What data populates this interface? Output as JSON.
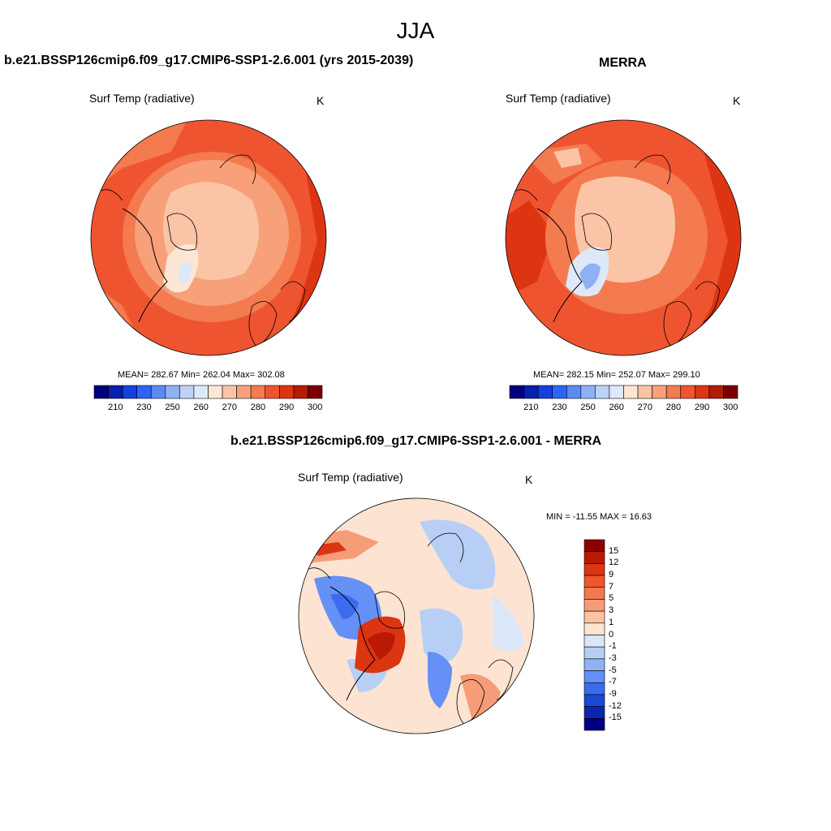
{
  "title": "JJA",
  "panels": [
    {
      "id": "model",
      "title": "b.e21.BSSP126cmip6.f09_g17.CMIP6-SSP1-2.6.001 (yrs 2015-2039)",
      "variable": "Surf Temp (radiative)",
      "units": "K",
      "stats": "MEAN= 282.67  Min= 262.04  Max= 302.08"
    },
    {
      "id": "obs",
      "title": "MERRA",
      "variable": "Surf Temp (radiative)",
      "units": "K",
      "stats": "MEAN= 282.15  Min= 252.07  Max= 299.10"
    },
    {
      "id": "diff",
      "title": "b.e21.BSSP126cmip6.f09_g17.CMIP6-SSP1-2.6.001 - MERRA",
      "variable": "Surf Temp (radiative)",
      "units": "K",
      "stats": "MIN = -11.55 MAX =  16.63"
    }
  ],
  "abs_colorbar": {
    "orientation": "horizontal",
    "tick_labels": [
      "210",
      "230",
      "250",
      "260",
      "270",
      "280",
      "290",
      "300"
    ],
    "colors": [
      "#00007f",
      "#0a1fb0",
      "#1540e0",
      "#2c64f5",
      "#5a8af5",
      "#8eb0f5",
      "#bcd2f7",
      "#dde8f8",
      "#fde6d4",
      "#fbc4a6",
      "#f7a07a",
      "#f47a50",
      "#ef5430",
      "#dd3512",
      "#b31b05",
      "#7c0000"
    ]
  },
  "diff_colorbar": {
    "orientation": "vertical",
    "tick_labels": [
      "15",
      "12",
      "9",
      "7",
      "5",
      "3",
      "1",
      "0",
      "-1",
      "-3",
      "-5",
      "-7",
      "-9",
      "-12",
      "-15"
    ],
    "colors": [
      "#8b0000",
      "#b81a05",
      "#dc3512",
      "#f0562c",
      "#f47850",
      "#f79c78",
      "#fbc2a4",
      "#fde4d2",
      "#dbe7f8",
      "#b8cff5",
      "#90b2f5",
      "#6590f5",
      "#3b6cf0",
      "#1a48d8",
      "#0a25b0",
      "#00007f"
    ]
  }
}
